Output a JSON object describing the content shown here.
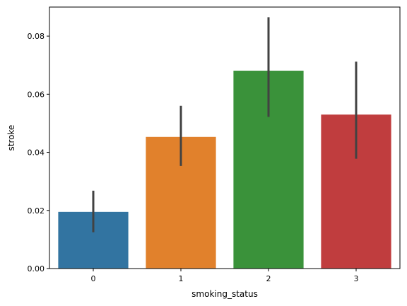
{
  "chart_data": {
    "type": "bar",
    "title": "",
    "xlabel": "smoking_status",
    "ylabel": "stroke",
    "categories": [
      "0",
      "1",
      "2",
      "3"
    ],
    "values": [
      0.0195,
      0.0453,
      0.0681,
      0.053
    ],
    "error_bars": [
      {
        "low": 0.0125,
        "high": 0.0268
      },
      {
        "low": 0.0353,
        "high": 0.056
      },
      {
        "low": 0.0522,
        "high": 0.0865
      },
      {
        "low": 0.0378,
        "high": 0.0712
      }
    ],
    "colors": [
      "#3274a1",
      "#e1812c",
      "#3a923a",
      "#c03d3e"
    ],
    "error_color": "#424242",
    "ylim": [
      0,
      0.09
    ],
    "yticks": [
      0.0,
      0.02,
      0.04,
      0.06,
      0.08
    ],
    "ytick_labels": [
      "0.00",
      "0.02",
      "0.04",
      "0.06",
      "0.08"
    ],
    "grid": false,
    "legend": "none"
  }
}
